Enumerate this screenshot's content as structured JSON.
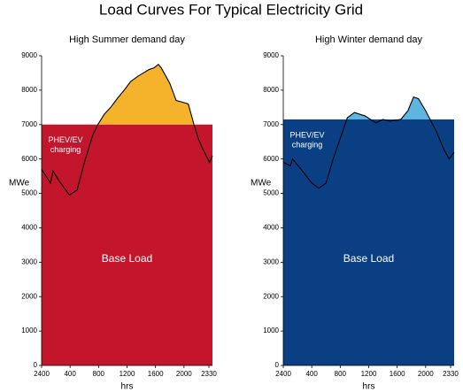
{
  "title": "Load Curves For Typical Electricity Grid",
  "chart_data": [
    {
      "type": "area",
      "title": "High Summer demand day",
      "xlabel": "hrs",
      "ylabel": "MWe",
      "x": [
        0,
        1.25,
        1.6,
        2.5,
        3.9,
        5,
        6,
        7.2,
        7.9,
        8.8,
        9.7,
        10.6,
        11.6,
        12.5,
        13.5,
        14.3,
        15.1,
        15.8,
        16.4,
        16.8,
        17.2,
        18,
        18.9,
        19.8,
        20.6,
        21.4,
        22,
        22.6,
        23.6,
        24
      ],
      "values": [
        5700,
        5300,
        5650,
        5350,
        4950,
        5100,
        5900,
        6700,
        7000,
        7300,
        7500,
        7750,
        8000,
        8250,
        8400,
        8500,
        8600,
        8650,
        8750,
        8650,
        8500,
        8200,
        7700,
        7650,
        7600,
        7000,
        6600,
        6300,
        5900,
        6100
      ],
      "base": 7000,
      "base_color": "#c3162c",
      "peak_color": "#f5b22b",
      "annotations": [
        "Base Load"
      ],
      "charging_label": [
        "PHEV/EV",
        "charging"
      ],
      "xlim": [
        0,
        24
      ],
      "ylim": [
        0,
        9000
      ],
      "xticks": [
        {
          "value": 0,
          "label": "2400"
        },
        {
          "value": 4,
          "label": "400"
        },
        {
          "value": 8,
          "label": "800"
        },
        {
          "value": 12,
          "label": "1200"
        },
        {
          "value": 16,
          "label": "1600"
        },
        {
          "value": 20,
          "label": "2000"
        },
        {
          "value": 23.5,
          "label": "2330"
        }
      ],
      "yticks": [
        0,
        1000,
        2000,
        3000,
        4000,
        5000,
        6000,
        7000,
        8000,
        9000
      ]
    },
    {
      "type": "area",
      "title": "High Winter demand day",
      "xlabel": "hrs",
      "ylabel": "MWe",
      "x": [
        0,
        1,
        1.3,
        2.5,
        4,
        5,
        6,
        7,
        8,
        9,
        10,
        11.5,
        13,
        14,
        15,
        16.5,
        17.5,
        18.3,
        19,
        20,
        20.5,
        21.5,
        22.5,
        23.3,
        24
      ],
      "values": [
        5900,
        5800,
        6000,
        5700,
        5300,
        5150,
        5300,
        6000,
        6600,
        7200,
        7350,
        7250,
        7050,
        7150,
        7100,
        7150,
        7400,
        7800,
        7750,
        7400,
        7200,
        6800,
        6300,
        6000,
        6200
      ],
      "base": 7150,
      "base_color": "#0b3f84",
      "peak_color": "#5db6e1",
      "annotations": [
        "Base Load"
      ],
      "charging_label": [
        "PHEV/EV",
        "charging"
      ],
      "xlim": [
        0,
        24
      ],
      "ylim": [
        0,
        9000
      ],
      "xticks": [
        {
          "value": 0,
          "label": "2400"
        },
        {
          "value": 4,
          "label": "400"
        },
        {
          "value": 8,
          "label": "800"
        },
        {
          "value": 12,
          "label": "1200"
        },
        {
          "value": 16,
          "label": "1600"
        },
        {
          "value": 20,
          "label": "2000"
        },
        {
          "value": 23.5,
          "label": "2330"
        }
      ],
      "yticks": [
        0,
        1000,
        2000,
        3000,
        4000,
        5000,
        6000,
        7000,
        8000,
        9000
      ]
    }
  ]
}
